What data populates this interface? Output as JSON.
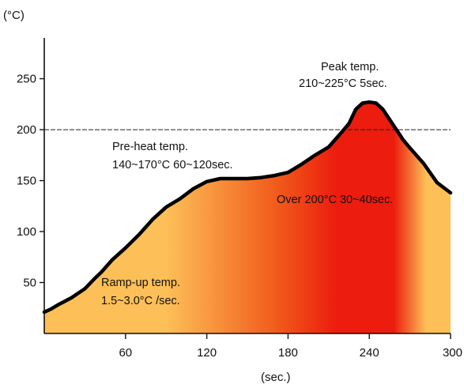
{
  "chart_data": {
    "type": "area",
    "ylabel": "(°C)",
    "xlabel": "(sec.)",
    "xlim": [
      0,
      300
    ],
    "ylim": [
      0,
      290
    ],
    "x_ticks": [
      60,
      120,
      180,
      240,
      300
    ],
    "x_tick_labels": [
      "60",
      "120",
      "180",
      "240",
      "300"
    ],
    "y_ticks": [
      50,
      100,
      150,
      200,
      250
    ],
    "y_tick_labels": [
      "50",
      "100",
      "150",
      "200",
      "250"
    ],
    "reference_line": {
      "y": 200,
      "style": "dashed"
    },
    "series": [
      {
        "x": [
          0,
          5,
          10,
          20,
          30,
          38,
          42,
          50,
          60,
          70,
          80,
          90,
          100,
          110,
          120,
          130,
          140,
          150,
          160,
          170,
          180,
          190,
          200,
          210,
          220,
          225,
          230,
          235,
          240,
          245,
          250,
          255,
          260,
          265,
          270,
          280,
          290,
          300
        ],
        "values": [
          21,
          24,
          28,
          35,
          44,
          55,
          60,
          72,
          84,
          97,
          112,
          124,
          132,
          142,
          149,
          152,
          152,
          152,
          153,
          155,
          158,
          166,
          175,
          183,
          198,
          206,
          220,
          226,
          227,
          226,
          220,
          210,
          200,
          190,
          182,
          167,
          148,
          138
        ]
      }
    ],
    "colors": {
      "cool": "#fdbf57",
      "hot": "#ec1c0e",
      "line": "#000000"
    },
    "annotations": [
      {
        "lines": [
          "Peak temp.",
          "210~225°C 5sec."
        ]
      },
      {
        "lines": [
          "Pre-heat temp.",
          "140~170°C 60~120sec."
        ]
      },
      {
        "lines": [
          "Over 200°C 30~40sec."
        ]
      },
      {
        "lines": [
          "Ramp-up temp.",
          "1.5~3.0°C /sec."
        ]
      }
    ]
  }
}
